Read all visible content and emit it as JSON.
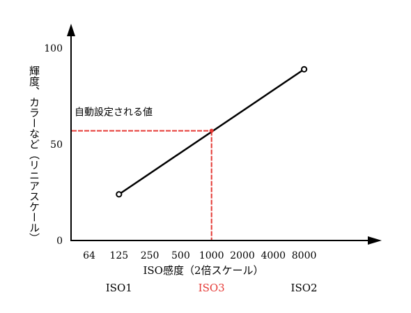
{
  "chart_data": {
    "type": "line",
    "title": "",
    "xlabel": "ISO感度（2倍スケール）",
    "ylabel": "輝度、カラーなど（リニアスケール）",
    "x_scale": "log2",
    "x_ticks": [
      64,
      125,
      250,
      500,
      1000,
      2000,
      4000,
      8000
    ],
    "y_ticks": [
      0,
      50,
      100
    ],
    "ylim": [
      0,
      100
    ],
    "series": [
      {
        "points": [
          {
            "x": 125,
            "y": 24
          },
          {
            "x": 8000,
            "y": 89
          }
        ]
      }
    ],
    "markers": [
      {
        "label": "ISO1",
        "x": 125,
        "y": 24,
        "style": "open-circle"
      },
      {
        "label": "ISO2",
        "x": 8000,
        "y": 89,
        "style": "open-circle"
      },
      {
        "label": "ISO3",
        "x": 1000,
        "y": 57,
        "style": "red-dot"
      }
    ],
    "annotation": {
      "text": "自動設定される値",
      "x": 1000,
      "y": 57,
      "color": "#e53935"
    },
    "iso_labels": [
      {
        "label": "ISO1",
        "x": 125,
        "color": "#000000"
      },
      {
        "label": "ISO3",
        "x": 1000,
        "color": "#e53935"
      },
      {
        "label": "ISO2",
        "x": 8000,
        "color": "#000000"
      }
    ],
    "grid": false,
    "legend": "none",
    "colors": {
      "line": "#000000",
      "highlight": "#e53935",
      "axis": "#000000"
    }
  }
}
